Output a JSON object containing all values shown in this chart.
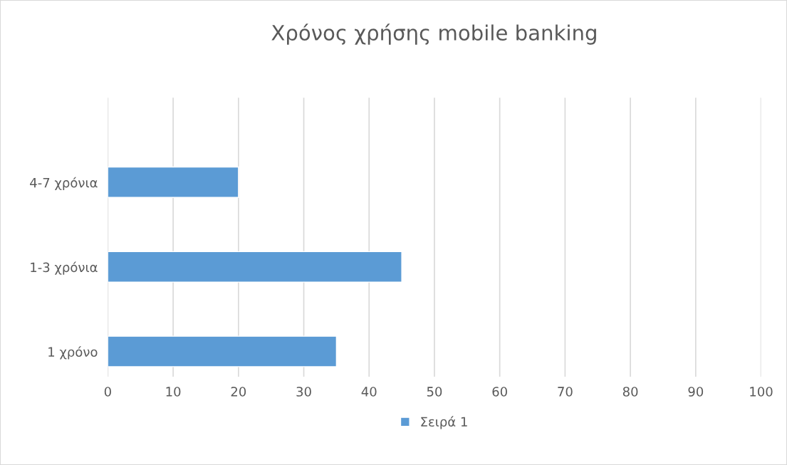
{
  "chart_data": {
    "type": "bar",
    "orientation": "horizontal",
    "title": "Χρόνος χρήσης mobile banking",
    "categories": [
      null,
      "4-7 χρόνια",
      "1-3 χρόνια",
      "1 χρόνο"
    ],
    "series": [
      {
        "name": "Σειρά 1",
        "color": "#5b9bd5",
        "values": [
          null,
          20,
          45,
          35
        ]
      }
    ],
    "xlim": [
      0,
      100
    ],
    "xticks": [
      0,
      10,
      20,
      30,
      40,
      50,
      60,
      70,
      80,
      90,
      100
    ],
    "grid": "x",
    "legend": "bottom"
  }
}
